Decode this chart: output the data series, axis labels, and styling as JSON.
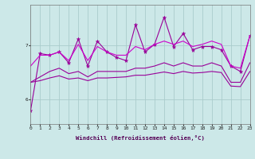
{
  "xlabel": "Windchill (Refroidissement éolien,°C)",
  "x": [
    0,
    1,
    2,
    3,
    4,
    5,
    6,
    7,
    8,
    9,
    10,
    11,
    12,
    13,
    14,
    15,
    16,
    17,
    18,
    19,
    20,
    21,
    22,
    23
  ],
  "line1": [
    5.8,
    6.85,
    6.82,
    6.88,
    6.68,
    7.12,
    6.62,
    7.08,
    6.88,
    6.78,
    6.72,
    7.38,
    6.88,
    7.02,
    7.52,
    6.98,
    7.22,
    6.92,
    6.98,
    6.98,
    6.92,
    6.62,
    6.52,
    7.18
  ],
  "line2": [
    6.62,
    6.82,
    6.82,
    6.88,
    6.72,
    7.02,
    6.72,
    6.98,
    6.88,
    6.82,
    6.82,
    6.98,
    6.92,
    7.02,
    7.08,
    7.02,
    7.08,
    6.98,
    7.02,
    7.08,
    7.02,
    6.62,
    6.58,
    7.18
  ],
  "line3": [
    6.32,
    6.42,
    6.52,
    6.58,
    6.48,
    6.52,
    6.42,
    6.52,
    6.52,
    6.52,
    6.52,
    6.58,
    6.58,
    6.62,
    6.68,
    6.62,
    6.68,
    6.62,
    6.62,
    6.68,
    6.62,
    6.32,
    6.32,
    6.68
  ],
  "line4": [
    6.32,
    6.35,
    6.4,
    6.44,
    6.38,
    6.4,
    6.35,
    6.4,
    6.4,
    6.41,
    6.42,
    6.45,
    6.45,
    6.48,
    6.51,
    6.48,
    6.52,
    6.49,
    6.5,
    6.52,
    6.5,
    6.25,
    6.24,
    6.52
  ],
  "line_color": "#990099",
  "line_color2": "#cc00cc",
  "bg_color": "#cce8e8",
  "grid_color": "#aacccc",
  "yticks": [
    6,
    7
  ],
  "ylim": [
    5.55,
    7.75
  ],
  "xlim": [
    0,
    23
  ]
}
